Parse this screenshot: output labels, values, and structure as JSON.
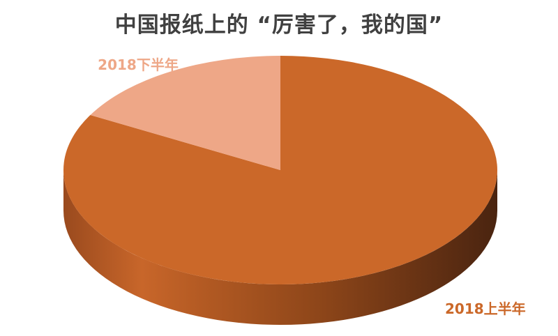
{
  "chart_data": {
    "type": "pie",
    "style": "3d",
    "title": "中国报纸上的 “厉害了，我的国”",
    "slices": [
      {
        "label": "2018上半年",
        "value": 83,
        "color": "#CB6829",
        "label_color": "#CB6829"
      },
      {
        "label": "2018下半年",
        "value": 17,
        "color": "#EEA787",
        "label_color": "#EEA787"
      }
    ],
    "legend": "none"
  }
}
